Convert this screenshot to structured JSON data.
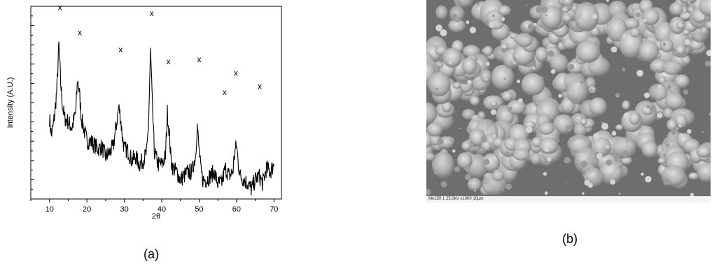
{
  "panel_a_label": "(a)",
  "panel_b_label": "(b)",
  "sem_caption": "Mn150 1  25.0kV  x1000   10µm",
  "colors": {
    "line": "#000000",
    "background": "#ffffff",
    "sem_gray": "#6e6e6e"
  },
  "chart_data": {
    "type": "line",
    "title": "",
    "xlabel": "2θ",
    "ylabel": "Intensity (A.U.)",
    "xlim": [
      5,
      72
    ],
    "ylim": [
      0,
      100
    ],
    "xticks": [
      10,
      20,
      30,
      40,
      50,
      60,
      70
    ],
    "y_tick_labels_shown": false,
    "grid": false,
    "legend": "none",
    "series": [
      {
        "x": [
          10,
          10.5,
          11,
          11.5,
          12,
          12.5,
          13,
          13.5,
          14,
          15,
          16,
          17,
          17.5,
          18,
          18.5,
          19,
          20,
          21,
          22,
          23,
          24,
          25,
          26,
          27,
          28,
          28.5,
          29,
          29.5,
          30,
          31,
          32,
          33,
          34,
          35,
          36,
          36.5,
          37,
          37.5,
          38,
          39,
          40,
          41,
          41.5,
          42,
          42.5,
          43,
          44,
          45,
          46,
          47,
          48,
          49,
          49.5,
          50,
          50.5,
          51,
          52,
          53,
          54,
          55,
          56,
          57,
          58,
          59,
          59.5,
          60,
          60.5,
          61,
          62,
          63,
          64,
          65,
          66,
          67,
          68,
          69,
          70
        ],
        "y": [
          42,
          33,
          38,
          46,
          58,
          80,
          60,
          48,
          42,
          40,
          37,
          45,
          62,
          55,
          42,
          38,
          30,
          30,
          28,
          26,
          27,
          22,
          24,
          27,
          40,
          48,
          42,
          32,
          26,
          25,
          20,
          22,
          18,
          20,
          24,
          40,
          77,
          48,
          25,
          18,
          18,
          22,
          45,
          35,
          20,
          16,
          14,
          10,
          12,
          14,
          14,
          22,
          38,
          25,
          14,
          10,
          10,
          12,
          14,
          8,
          8,
          16,
          12,
          14,
          24,
          28,
          18,
          12,
          10,
          8,
          5,
          10,
          12,
          8,
          16,
          14,
          18
        ]
      }
    ],
    "annotations": [
      {
        "text": "x",
        "x": 12.8,
        "y": 98
      },
      {
        "text": "x",
        "x": 18.1,
        "y": 85
      },
      {
        "text": "x",
        "x": 29.0,
        "y": 76
      },
      {
        "text": "x",
        "x": 37.3,
        "y": 95
      },
      {
        "text": "x",
        "x": 41.8,
        "y": 70
      },
      {
        "text": "x",
        "x": 50.0,
        "y": 71
      },
      {
        "text": "x",
        "x": 56.8,
        "y": 54
      },
      {
        "text": "x",
        "x": 59.8,
        "y": 64
      },
      {
        "text": "x",
        "x": 66.2,
        "y": 57
      }
    ]
  }
}
